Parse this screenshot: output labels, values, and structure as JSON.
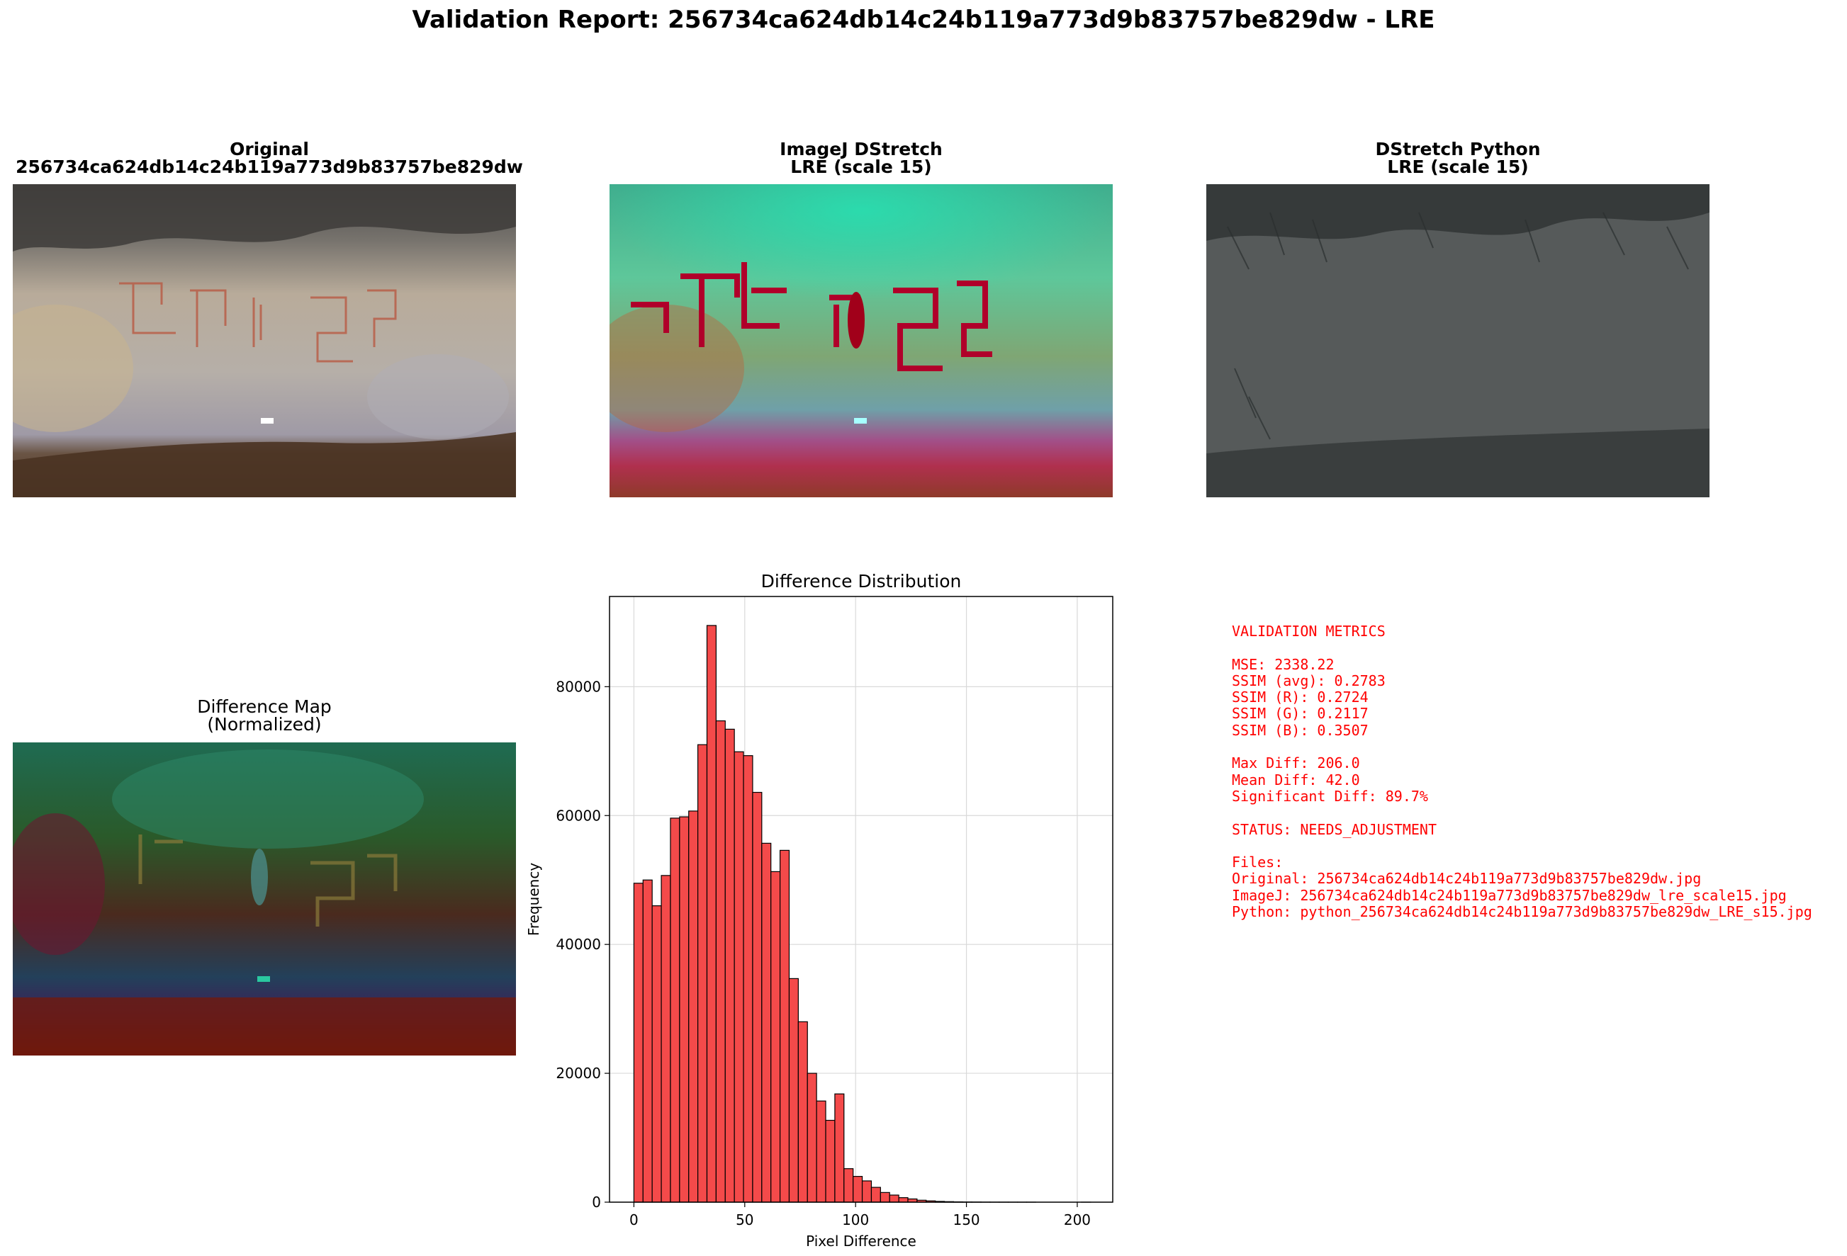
{
  "suptitle": "Validation Report: 256734ca624db14c24b119a773d9b83757be829dw - LRE",
  "panels": {
    "original": {
      "title1": "Original",
      "title2": "256734ca624db14c24b119a773d9b83757be829dw"
    },
    "imagej": {
      "title1": "ImageJ DStretch",
      "title2": "LRE (scale 15)"
    },
    "python": {
      "title1": "DStretch Python",
      "title2": "LRE (scale 15)"
    },
    "diffmap": {
      "title1": "Difference Map",
      "title2": "(Normalized)"
    }
  },
  "metrics_lines": [
    "VALIDATION METRICS",
    "",
    "MSE: 2338.22",
    "SSIM (avg): 0.2783",
    "SSIM (R): 0.2724",
    "SSIM (G): 0.2117",
    "SSIM (B): 0.3507",
    "",
    "Max Diff: 206.0",
    "Mean Diff: 42.0",
    "Significant Diff: 89.7%",
    "",
    "STATUS: NEEDS_ADJUSTMENT",
    "",
    "Files:",
    "Original: 256734ca624db14c24b119a773d9b83757be829dw.jpg",
    "ImageJ: 256734ca624db14c24b119a773d9b83757be829dw_lre_scale15.jpg",
    "Python: python_256734ca624db14c24b119a773d9b83757be829dw_LRE_s15.jpg"
  ],
  "colors": {
    "metrics_text": "#ff0000",
    "bar_fill": "#f44a4a",
    "bar_edge": "#000000"
  },
  "chart_data": {
    "type": "bar",
    "title": "Difference Distribution",
    "xlabel": "Pixel Difference",
    "ylabel": "Frequency",
    "xlim": [
      -11,
      216
    ],
    "ylim": [
      0,
      94000
    ],
    "xticks": [
      "0",
      "50",
      "100",
      "150",
      "200"
    ],
    "xtick_values": [
      0,
      50,
      100,
      150,
      200
    ],
    "yticks": [
      "0",
      "20000",
      "40000",
      "60000",
      "80000"
    ],
    "ytick_values": [
      0,
      20000,
      40000,
      60000,
      80000
    ],
    "grid": true,
    "bin_start": 0,
    "bin_width": 4.12,
    "values": [
      49500,
      50000,
      46000,
      50700,
      59600,
      59800,
      60700,
      71000,
      89500,
      74700,
      73400,
      69900,
      69300,
      63600,
      55700,
      51300,
      54600,
      34700,
      28000,
      20000,
      15700,
      12700,
      16800,
      5200,
      4000,
      3300,
      2300,
      1500,
      1100,
      700,
      500,
      300,
      200,
      120,
      80,
      50,
      30,
      20,
      10,
      5,
      3,
      2,
      1,
      1,
      0,
      0,
      0,
      0,
      0,
      1
    ]
  }
}
